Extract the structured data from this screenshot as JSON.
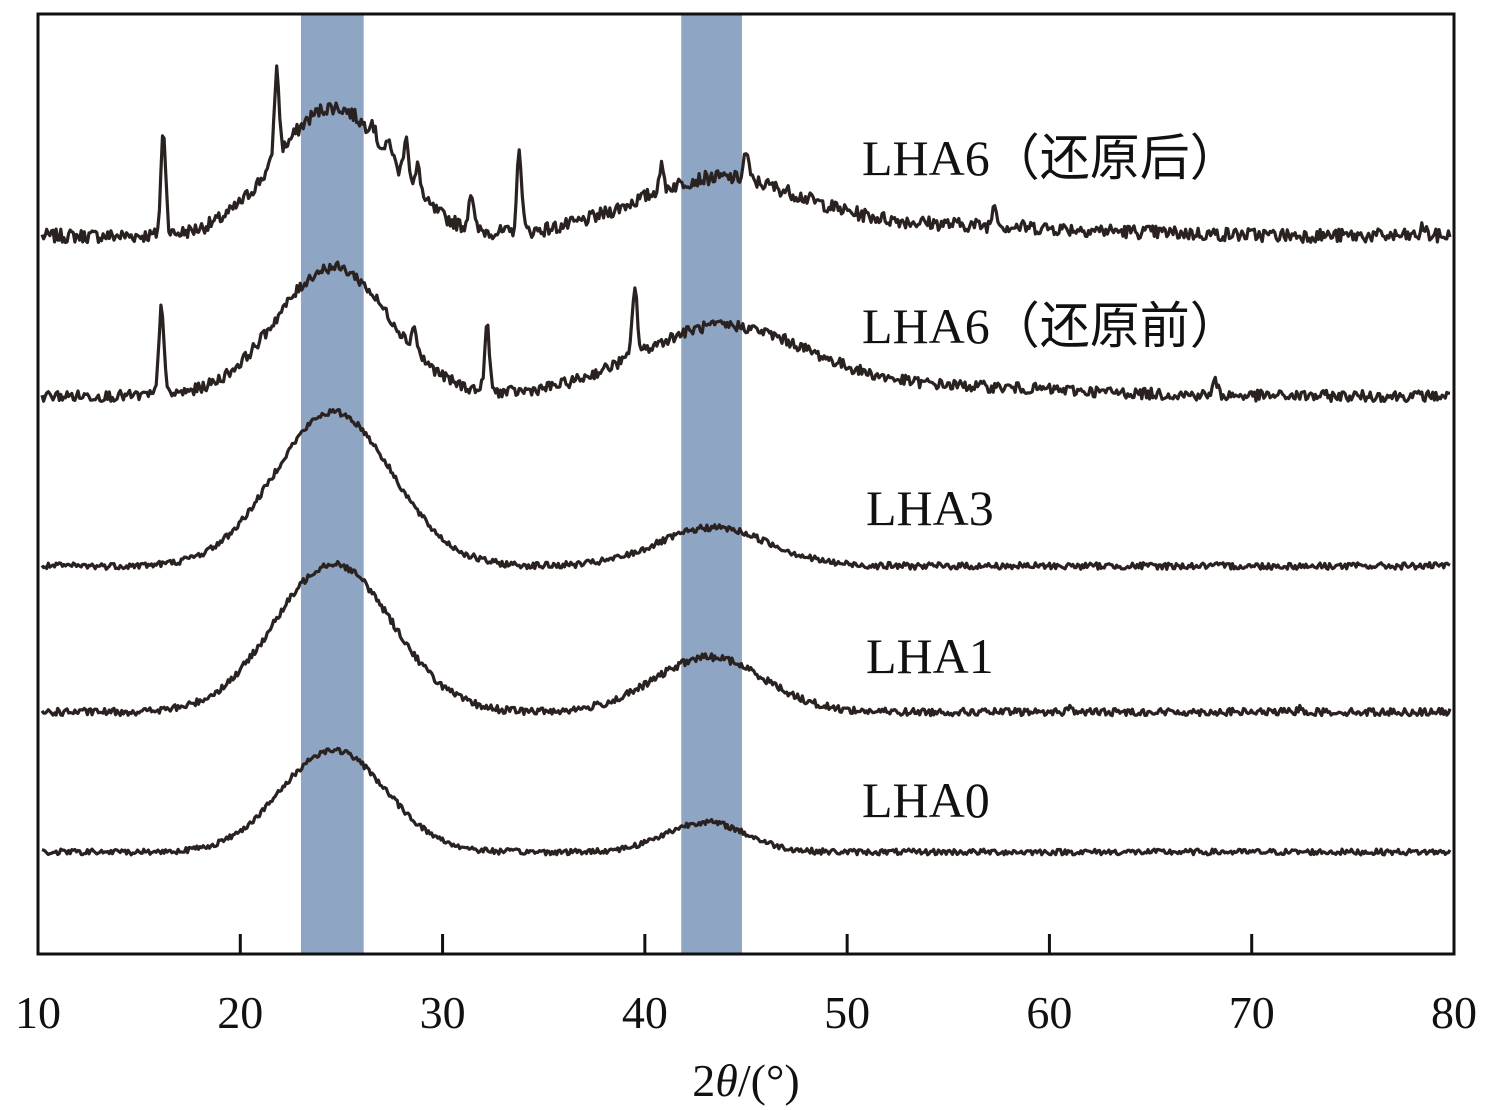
{
  "chart_data": {
    "type": "line",
    "xlabel_prefix": "2",
    "xlabel_symbol": "θ",
    "xlabel_suffix": "/(°)",
    "xlim": [
      10,
      80
    ],
    "xticks": [
      10,
      20,
      30,
      40,
      50,
      60,
      70,
      80
    ],
    "grid": false,
    "highlight_bands": [
      {
        "from": 23.0,
        "to": 26.1,
        "color": "#8fa5c4"
      },
      {
        "from": 41.8,
        "to": 44.8,
        "color": "#8fa5c4"
      }
    ],
    "series": [
      {
        "name": "LHA6（还原后）",
        "baseline": 0.0,
        "noise": 0.01,
        "broad_peaks": [
          [
            24.6,
            2.8,
            0.56
          ],
          [
            43.5,
            4.0,
            0.23
          ],
          [
            53.0,
            8.0,
            0.05
          ]
        ],
        "sharp_peaks": [
          [
            16.2,
            0.45
          ],
          [
            21.8,
            0.38
          ],
          [
            26.5,
            0.06
          ],
          [
            27.4,
            0.07
          ],
          [
            28.2,
            0.2
          ],
          [
            28.8,
            0.12
          ],
          [
            31.4,
            0.16
          ],
          [
            33.8,
            0.35
          ],
          [
            40.8,
            0.1
          ],
          [
            45.0,
            0.12
          ],
          [
            57.3,
            0.1
          ],
          [
            78.5,
            0.04
          ]
        ]
      },
      {
        "name": "LHA6（还原前）",
        "baseline": 0.0,
        "noise": 0.008,
        "broad_peaks": [
          [
            24.6,
            2.8,
            0.56
          ],
          [
            43.8,
            4.2,
            0.3
          ],
          [
            55.0,
            6.0,
            0.04
          ]
        ],
        "sharp_peaks": [
          [
            16.1,
            0.4
          ],
          [
            28.6,
            0.1
          ],
          [
            32.2,
            0.28
          ],
          [
            39.5,
            0.3
          ],
          [
            68.2,
            0.06
          ]
        ]
      },
      {
        "name": "LHA3",
        "baseline": 0.0,
        "noise": 0.01,
        "broad_peaks": [
          [
            24.6,
            2.9,
            1.4
          ],
          [
            43.4,
            2.7,
            0.35
          ]
        ],
        "sharp_peaks": []
      },
      {
        "name": "LHA1",
        "baseline": 0.0,
        "noise": 0.011,
        "broad_peaks": [
          [
            24.6,
            2.9,
            1.35
          ],
          [
            43.2,
            2.7,
            0.5
          ]
        ],
        "sharp_peaks": [
          [
            61.0,
            0.05
          ],
          [
            72.4,
            0.04
          ]
        ]
      },
      {
        "name": "LHA0",
        "baseline": 0.0,
        "noise": 0.008,
        "broad_peaks": [
          [
            24.6,
            2.6,
            0.85
          ],
          [
            43.0,
            2.0,
            0.25
          ]
        ],
        "sharp_peaks": []
      }
    ]
  }
}
